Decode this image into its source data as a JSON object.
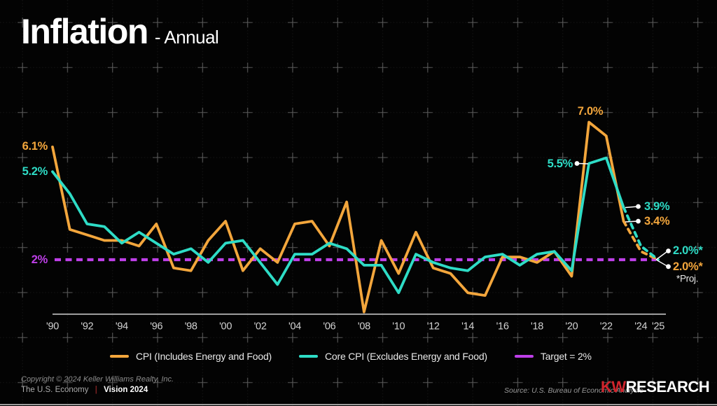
{
  "header": {
    "title": "Inflation",
    "subtitle": "- Annual"
  },
  "chart_data": {
    "type": "line",
    "title": "Inflation - Annual",
    "xlabel": "",
    "ylabel": "",
    "ylim": [
      0,
      8
    ],
    "grid": true,
    "legend_position": "bottom",
    "x_years": [
      1990,
      1991,
      1992,
      1993,
      1994,
      1995,
      1996,
      1997,
      1998,
      1999,
      2000,
      2001,
      2002,
      2003,
      2004,
      2005,
      2006,
      2007,
      2008,
      2009,
      2010,
      2011,
      2012,
      2013,
      2014,
      2015,
      2016,
      2017,
      2018,
      2019,
      2020,
      2021,
      2022,
      2023
    ],
    "series": [
      {
        "name": "CPI (Includes Energy and Food)",
        "color": "#F3A63C",
        "values": [
          6.1,
          3.1,
          2.9,
          2.7,
          2.7,
          2.5,
          3.3,
          1.7,
          1.6,
          2.7,
          3.4,
          1.6,
          2.4,
          1.9,
          3.3,
          3.4,
          2.5,
          4.1,
          0.1,
          2.7,
          1.5,
          3.0,
          1.7,
          1.5,
          0.8,
          0.7,
          2.1,
          2.1,
          1.9,
          2.3,
          1.4,
          7.0,
          6.5,
          3.4
        ]
      },
      {
        "name": "Core CPI (Excludes Energy and Food)",
        "color": "#2EDCC6",
        "values": [
          5.2,
          4.4,
          3.3,
          3.2,
          2.6,
          3.0,
          2.6,
          2.2,
          2.4,
          1.9,
          2.6,
          2.7,
          1.9,
          1.1,
          2.2,
          2.2,
          2.6,
          2.4,
          1.8,
          1.8,
          0.8,
          2.2,
          1.9,
          1.7,
          1.6,
          2.1,
          2.2,
          1.8,
          2.2,
          2.3,
          1.6,
          5.5,
          5.7,
          3.9
        ]
      }
    ],
    "projection": {
      "years": [
        2023,
        2024,
        2025
      ],
      "cpi": [
        3.4,
        2.3,
        2.0
      ],
      "core": [
        3.9,
        2.5,
        2.0
      ],
      "note": "*Proj."
    },
    "target": {
      "value": 2,
      "label": "2%",
      "color": "#BE3FE8"
    },
    "x_ticks": [
      {
        "label": "'90",
        "year": 1990
      },
      {
        "label": "'92",
        "year": 1992
      },
      {
        "label": "'94",
        "year": 1994
      },
      {
        "label": "'96",
        "year": 1996
      },
      {
        "label": "'98",
        "year": 1998
      },
      {
        "label": "'00",
        "year": 2000
      },
      {
        "label": "'02",
        "year": 2002
      },
      {
        "label": "'04",
        "year": 2004
      },
      {
        "label": "'06",
        "year": 2006
      },
      {
        "label": "'08",
        "year": 2008
      },
      {
        "label": "'10",
        "year": 2010
      },
      {
        "label": "'12",
        "year": 2012
      },
      {
        "label": "'14",
        "year": 2014
      },
      {
        "label": "'16",
        "year": 2016
      },
      {
        "label": "'18",
        "year": 2018
      },
      {
        "label": "'20",
        "year": 2020
      },
      {
        "label": "'22",
        "year": 2022
      },
      {
        "label": "'24",
        "year": 2024
      },
      {
        "label": "'25",
        "year": 2025
      }
    ],
    "annotations": [
      {
        "id": "cpi-start",
        "text": "6.1%",
        "color": "#F3A63C"
      },
      {
        "id": "core-start",
        "text": "5.2%",
        "color": "#2EDCC6"
      },
      {
        "id": "target",
        "text": "2%",
        "color": "#BE3FE8"
      },
      {
        "id": "cpi-peak",
        "text": "7.0%",
        "color": "#F3A63C"
      },
      {
        "id": "core-peak",
        "text": "5.5%",
        "color": "#2EDCC6"
      },
      {
        "id": "core-2023",
        "text": "3.9%",
        "color": "#2EDCC6"
      },
      {
        "id": "cpi-2023",
        "text": "3.4%",
        "color": "#F3A63C"
      },
      {
        "id": "core-proj",
        "text": "2.0%*",
        "color": "#2EDCC6"
      },
      {
        "id": "cpi-proj",
        "text": "2.0%*",
        "color": "#F3A63C"
      },
      {
        "id": "proj-note",
        "text": "*Proj.",
        "color": "#E8E8E8"
      }
    ]
  },
  "legend": {
    "items": [
      {
        "label": "CPI (Includes Energy and Food)",
        "color": "#F3A63C"
      },
      {
        "label": "Core CPI (Excludes Energy and Food)",
        "color": "#2EDCC6"
      },
      {
        "label": "Target = 2%",
        "color": "#BE3FE8"
      }
    ]
  },
  "footer": {
    "copyright": "Copyright © 2024 Keller Williams Realty, Inc.",
    "series_name": "The U.S. Economy",
    "separator": "|",
    "edition": "Vision 2024",
    "source": "Source: U.S. Bureau of Economic Analysis",
    "brand_kw": "KW",
    "brand_research": "RESEARCH"
  }
}
